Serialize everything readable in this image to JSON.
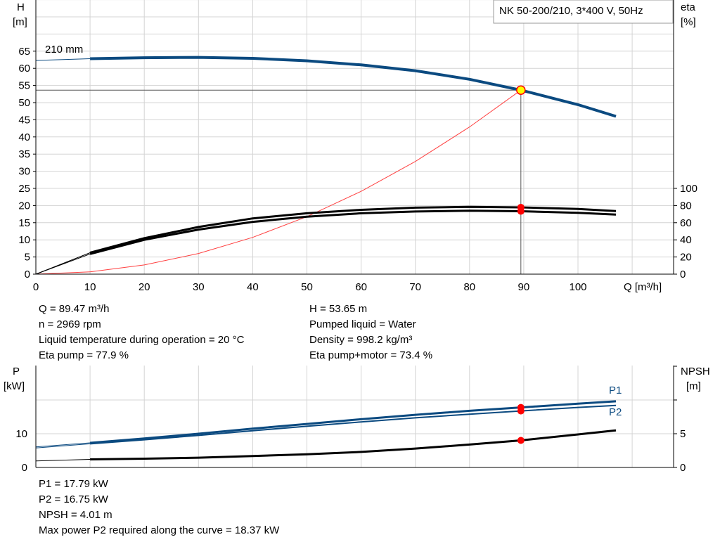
{
  "colors": {
    "head": "#0b4a80",
    "eta": "#000000",
    "system": "#ff4040",
    "power": "#0b4a80",
    "npsh": "#000000",
    "duty_point": "#ff0000",
    "duty_fill": "#ffff00",
    "grid": "#d4d4d4"
  },
  "chart_data": [
    {
      "type": "line",
      "title": "NK 50-200/210, 3*400 V, 50Hz",
      "xlabel": "Q [m³/h]",
      "ylabel": "H\n[m]",
      "ylabel_lines": [
        "H",
        "[m]"
      ],
      "y2label_lines": [
        "eta",
        "[%]"
      ],
      "xlim": [
        0,
        117
      ],
      "ylim": [
        0,
        80
      ],
      "y2lim": [
        0,
        100
      ],
      "xticks": [
        0,
        10,
        20,
        30,
        40,
        50,
        60,
        70,
        80,
        90,
        100
      ],
      "yticks": [
        0,
        5,
        10,
        15,
        20,
        25,
        30,
        35,
        40,
        45,
        50,
        55,
        60,
        65
      ],
      "y2ticks": [
        0,
        20,
        40,
        60,
        80,
        100
      ],
      "grid": true,
      "curve_label": "210 mm",
      "series": [
        {
          "name": "H",
          "axis": "left",
          "x": [
            0,
            10,
            20,
            30,
            40,
            50,
            60,
            70,
            80,
            89.47,
            100,
            107
          ],
          "y": [
            62.3,
            62.8,
            63.1,
            63.2,
            62.9,
            62.2,
            61.0,
            59.3,
            56.8,
            53.65,
            49.4,
            46.0
          ]
        },
        {
          "name": "Eta pump",
          "axis": "right",
          "x": [
            0,
            10,
            20,
            30,
            40,
            50,
            60,
            70,
            80,
            89.47,
            100,
            107
          ],
          "y": [
            0,
            25,
            42,
            55,
            65,
            71,
            75,
            77.5,
            78.5,
            77.9,
            76,
            73.5
          ]
        },
        {
          "name": "Eta pump+motor",
          "axis": "right",
          "x": [
            0,
            10,
            20,
            30,
            40,
            50,
            60,
            70,
            80,
            89.47,
            100,
            107
          ],
          "y": [
            0,
            23.5,
            40,
            52,
            61,
            67,
            71,
            73,
            74,
            73.4,
            71.5,
            69.5
          ]
        },
        {
          "name": "System curve",
          "axis": "left",
          "x": [
            0,
            10,
            20,
            30,
            40,
            50,
            60,
            70,
            80,
            89.47
          ],
          "y": [
            0,
            0.67,
            2.68,
            6.03,
            10.72,
            16.76,
            24.13,
            32.85,
            42.9,
            53.65
          ]
        }
      ],
      "duty_point": {
        "Q": 89.47,
        "H": 53.65,
        "eta_pump": 77.9,
        "eta_total": 73.4
      }
    },
    {
      "type": "line",
      "ylabel_lines": [
        "P",
        "[kW]"
      ],
      "y2label_lines": [
        "NPSH",
        "[m]"
      ],
      "xlim": [
        0,
        117
      ],
      "ylim": [
        0,
        30
      ],
      "y2lim": [
        0,
        15
      ],
      "yticks": [
        0,
        10
      ],
      "y2ticks": [
        0,
        5
      ],
      "grid": true,
      "series": [
        {
          "name": "P1",
          "axis": "left",
          "x": [
            0,
            10,
            20,
            30,
            40,
            50,
            60,
            70,
            80,
            89.47,
            100,
            107
          ],
          "y": [
            6.1,
            7.3,
            8.6,
            10.0,
            11.5,
            12.9,
            14.3,
            15.6,
            16.8,
            17.79,
            18.9,
            19.6
          ]
        },
        {
          "name": "P2",
          "axis": "left",
          "x": [
            0,
            10,
            20,
            30,
            40,
            50,
            60,
            70,
            80,
            89.47,
            100,
            107
          ],
          "y": [
            5.8,
            7.0,
            8.2,
            9.5,
            10.9,
            12.2,
            13.5,
            14.7,
            15.8,
            16.75,
            17.8,
            18.4
          ]
        },
        {
          "name": "NPSH",
          "axis": "right",
          "x": [
            0,
            10,
            20,
            30,
            40,
            50,
            60,
            70,
            80,
            89.47,
            100,
            107
          ],
          "y": [
            0.97,
            1.2,
            1.3,
            1.45,
            1.7,
            1.95,
            2.3,
            2.8,
            3.4,
            4.01,
            4.9,
            5.5
          ]
        }
      ],
      "duty_point": {
        "Q": 89.47,
        "P1": 17.79,
        "P2": 16.75,
        "NPSH": 4.01
      }
    }
  ],
  "info_top": {
    "left": [
      "Q = 89.47 m³/h",
      "n = 2969 rpm",
      "Liquid temperature during operation = 20 °C",
      "Eta pump = 77.9 %"
    ],
    "right": [
      "H = 53.65 m",
      "Pumped liquid = Water",
      "Density = 998.2 kg/m³",
      "Eta pump+motor = 73.4 %"
    ]
  },
  "info_bottom": [
    "P1 = 17.79 kW",
    "P2 = 16.75 kW",
    "NPSH = 4.01 m",
    "Max power P2 required along the curve = 18.37 kW"
  ]
}
